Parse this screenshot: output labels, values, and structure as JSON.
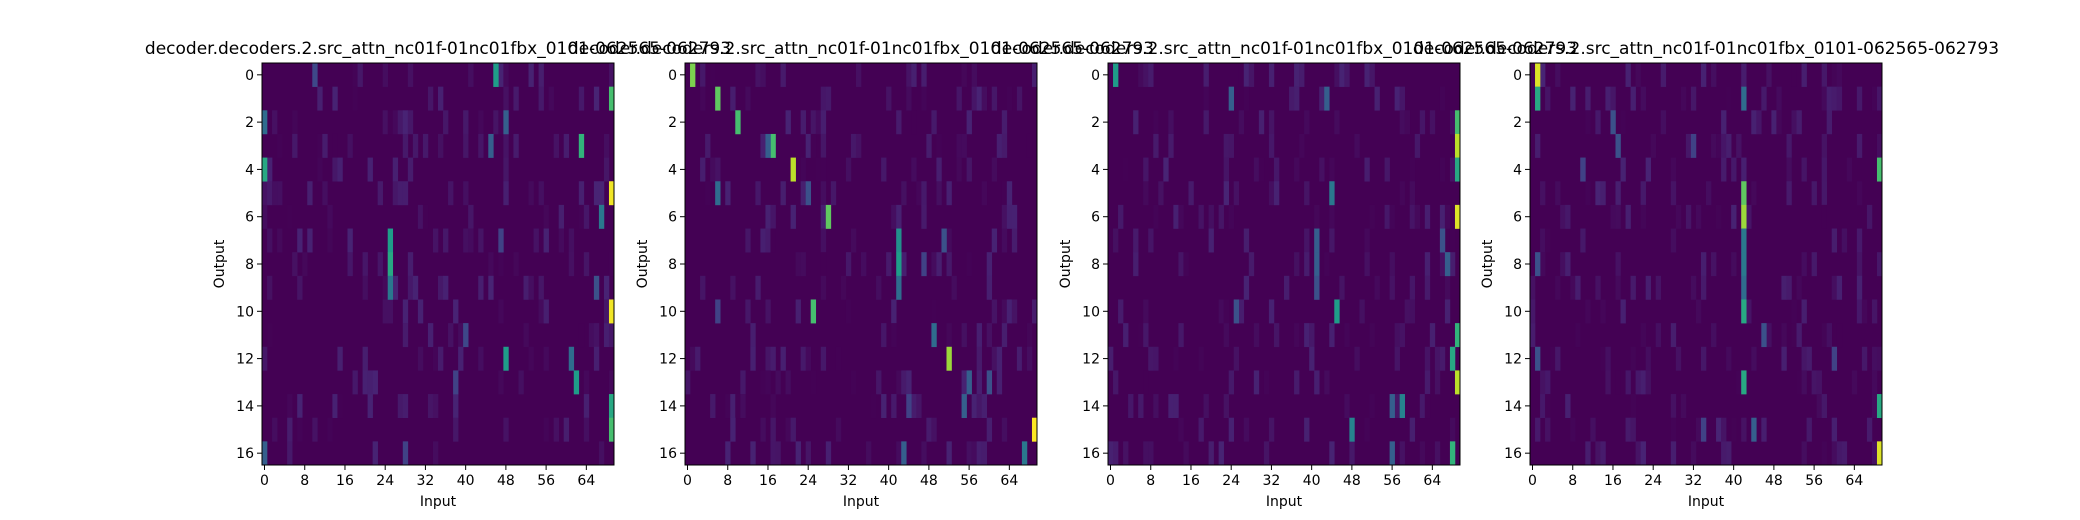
{
  "colors": {
    "background": "#440154",
    "viridis": [
      "#440154",
      "#482878",
      "#3e4989",
      "#31688e",
      "#26828e",
      "#1f9e89",
      "#35b779",
      "#6ece58",
      "#b5de2b",
      "#fde725"
    ]
  },
  "chart_data": [
    {
      "type": "heatmap",
      "title": "decoder.decoders.2.src_attn_nc01f-01nc01fbx_0101-062565-062793",
      "xlabel": "Input",
      "ylabel": "Output",
      "n_inputs": 70,
      "n_outputs": 17,
      "xticks": [
        0,
        8,
        16,
        24,
        32,
        40,
        48,
        56,
        64
      ],
      "yticks": [
        0,
        2,
        4,
        6,
        8,
        10,
        12,
        14,
        16
      ],
      "peaks": [
        {
          "row": 0,
          "col": 46,
          "v": 0.55
        },
        {
          "row": 0,
          "col": 10,
          "v": 0.22
        },
        {
          "row": 1,
          "col": 69,
          "v": 0.7
        },
        {
          "row": 2,
          "col": 0,
          "v": 0.35
        },
        {
          "row": 2,
          "col": 48,
          "v": 0.3
        },
        {
          "row": 3,
          "col": 63,
          "v": 0.65
        },
        {
          "row": 3,
          "col": 45,
          "v": 0.3
        },
        {
          "row": 4,
          "col": 0,
          "v": 0.6
        },
        {
          "row": 5,
          "col": 69,
          "v": 0.98
        },
        {
          "row": 6,
          "col": 67,
          "v": 0.4
        },
        {
          "row": 7,
          "col": 25,
          "v": 0.55
        },
        {
          "row": 7,
          "col": 47,
          "v": 0.2
        },
        {
          "row": 8,
          "col": 25,
          "v": 0.6
        },
        {
          "row": 9,
          "col": 25,
          "v": 0.4
        },
        {
          "row": 9,
          "col": 66,
          "v": 0.25
        },
        {
          "row": 10,
          "col": 69,
          "v": 0.98
        },
        {
          "row": 11,
          "col": 40,
          "v": 0.22
        },
        {
          "row": 12,
          "col": 48,
          "v": 0.55
        },
        {
          "row": 12,
          "col": 61,
          "v": 0.35
        },
        {
          "row": 13,
          "col": 62,
          "v": 0.55
        },
        {
          "row": 13,
          "col": 38,
          "v": 0.2
        },
        {
          "row": 14,
          "col": 69,
          "v": 0.6
        },
        {
          "row": 15,
          "col": 69,
          "v": 0.7
        },
        {
          "row": 16,
          "col": 0,
          "v": 0.3
        },
        {
          "row": 16,
          "col": 28,
          "v": 0.2
        }
      ]
    },
    {
      "type": "heatmap",
      "title": "decoder.decoders.2.src_attn_nc01f-01nc01fbx_0101-062565-062793",
      "xlabel": "Input",
      "ylabel": "Output",
      "n_inputs": 70,
      "n_outputs": 17,
      "xticks": [
        0,
        8,
        16,
        24,
        32,
        40,
        48,
        56,
        64
      ],
      "yticks": [
        0,
        2,
        4,
        6,
        8,
        10,
        12,
        14,
        16
      ],
      "peaks": [
        {
          "row": 0,
          "col": 1,
          "v": 0.8
        },
        {
          "row": 1,
          "col": 6,
          "v": 0.75
        },
        {
          "row": 2,
          "col": 10,
          "v": 0.7
        },
        {
          "row": 3,
          "col": 17,
          "v": 0.7
        },
        {
          "row": 3,
          "col": 16,
          "v": 0.3
        },
        {
          "row": 4,
          "col": 21,
          "v": 0.9
        },
        {
          "row": 5,
          "col": 6,
          "v": 0.35
        },
        {
          "row": 5,
          "col": 24,
          "v": 0.25
        },
        {
          "row": 6,
          "col": 28,
          "v": 0.75
        },
        {
          "row": 7,
          "col": 42,
          "v": 0.5
        },
        {
          "row": 7,
          "col": 51,
          "v": 0.25
        },
        {
          "row": 8,
          "col": 42,
          "v": 0.55
        },
        {
          "row": 8,
          "col": 47,
          "v": 0.2
        },
        {
          "row": 9,
          "col": 42,
          "v": 0.35
        },
        {
          "row": 10,
          "col": 25,
          "v": 0.7
        },
        {
          "row": 10,
          "col": 6,
          "v": 0.2
        },
        {
          "row": 11,
          "col": 49,
          "v": 0.35
        },
        {
          "row": 12,
          "col": 52,
          "v": 0.85
        },
        {
          "row": 13,
          "col": 56,
          "v": 0.3
        },
        {
          "row": 13,
          "col": 60,
          "v": 0.25
        },
        {
          "row": 14,
          "col": 55,
          "v": 0.3
        },
        {
          "row": 14,
          "col": 44,
          "v": 0.2
        },
        {
          "row": 15,
          "col": 69,
          "v": 1.0
        },
        {
          "row": 16,
          "col": 67,
          "v": 0.4
        },
        {
          "row": 16,
          "col": 43,
          "v": 0.3
        }
      ]
    },
    {
      "type": "heatmap",
      "title": "decoder.decoders.2.src_attn_nc01f-01nc01fbx_0101-062565-062793",
      "xlabel": "Input",
      "ylabel": "Output",
      "n_inputs": 70,
      "n_outputs": 17,
      "xticks": [
        0,
        8,
        16,
        24,
        32,
        40,
        48,
        56,
        64
      ],
      "yticks": [
        0,
        2,
        4,
        6,
        8,
        10,
        12,
        14,
        16
      ],
      "peaks": [
        {
          "row": 0,
          "col": 1,
          "v": 0.55
        },
        {
          "row": 1,
          "col": 24,
          "v": 0.3
        },
        {
          "row": 1,
          "col": 43,
          "v": 0.3
        },
        {
          "row": 2,
          "col": 69,
          "v": 0.7
        },
        {
          "row": 3,
          "col": 69,
          "v": 0.9
        },
        {
          "row": 4,
          "col": 69,
          "v": 0.6
        },
        {
          "row": 5,
          "col": 44,
          "v": 0.4
        },
        {
          "row": 6,
          "col": 69,
          "v": 0.95
        },
        {
          "row": 7,
          "col": 41,
          "v": 0.3
        },
        {
          "row": 7,
          "col": 66,
          "v": 0.25
        },
        {
          "row": 8,
          "col": 41,
          "v": 0.3
        },
        {
          "row": 8,
          "col": 67,
          "v": 0.3
        },
        {
          "row": 9,
          "col": 41,
          "v": 0.25
        },
        {
          "row": 10,
          "col": 45,
          "v": 0.55
        },
        {
          "row": 10,
          "col": 25,
          "v": 0.25
        },
        {
          "row": 11,
          "col": 69,
          "v": 0.65
        },
        {
          "row": 12,
          "col": 68,
          "v": 0.6
        },
        {
          "row": 13,
          "col": 69,
          "v": 0.9
        },
        {
          "row": 14,
          "col": 58,
          "v": 0.45
        },
        {
          "row": 14,
          "col": 56,
          "v": 0.3
        },
        {
          "row": 15,
          "col": 48,
          "v": 0.45
        },
        {
          "row": 16,
          "col": 68,
          "v": 0.65
        },
        {
          "row": 16,
          "col": 56,
          "v": 0.3
        }
      ]
    },
    {
      "type": "heatmap",
      "title": "decoder.decoders.2.src_attn_nc01f-01nc01fbx_0101-062565-062793",
      "xlabel": "Input",
      "ylabel": "Output",
      "n_inputs": 70,
      "n_outputs": 17,
      "xticks": [
        0,
        8,
        16,
        24,
        32,
        40,
        48,
        56,
        64
      ],
      "yticks": [
        0,
        2,
        4,
        6,
        8,
        10,
        12,
        14,
        16
      ],
      "peaks": [
        {
          "row": 0,
          "col": 1,
          "v": 0.95
        },
        {
          "row": 1,
          "col": 1,
          "v": 0.6
        },
        {
          "row": 1,
          "col": 42,
          "v": 0.35
        },
        {
          "row": 2,
          "col": 16,
          "v": 0.25
        },
        {
          "row": 3,
          "col": 17,
          "v": 0.25
        },
        {
          "row": 3,
          "col": 32,
          "v": 0.2
        },
        {
          "row": 4,
          "col": 69,
          "v": 0.7
        },
        {
          "row": 4,
          "col": 10,
          "v": 0.2
        },
        {
          "row": 5,
          "col": 42,
          "v": 0.75
        },
        {
          "row": 6,
          "col": 42,
          "v": 0.85
        },
        {
          "row": 7,
          "col": 42,
          "v": 0.4
        },
        {
          "row": 8,
          "col": 42,
          "v": 0.4
        },
        {
          "row": 8,
          "col": 1,
          "v": 0.25
        },
        {
          "row": 9,
          "col": 42,
          "v": 0.35
        },
        {
          "row": 10,
          "col": 42,
          "v": 0.6
        },
        {
          "row": 11,
          "col": 46,
          "v": 0.25
        },
        {
          "row": 12,
          "col": 1,
          "v": 0.25
        },
        {
          "row": 12,
          "col": 60,
          "v": 0.2
        },
        {
          "row": 13,
          "col": 42,
          "v": 0.6
        },
        {
          "row": 14,
          "col": 69,
          "v": 0.6
        },
        {
          "row": 15,
          "col": 44,
          "v": 0.3
        },
        {
          "row": 15,
          "col": 34,
          "v": 0.2
        },
        {
          "row": 16,
          "col": 69,
          "v": 0.95
        }
      ]
    }
  ]
}
